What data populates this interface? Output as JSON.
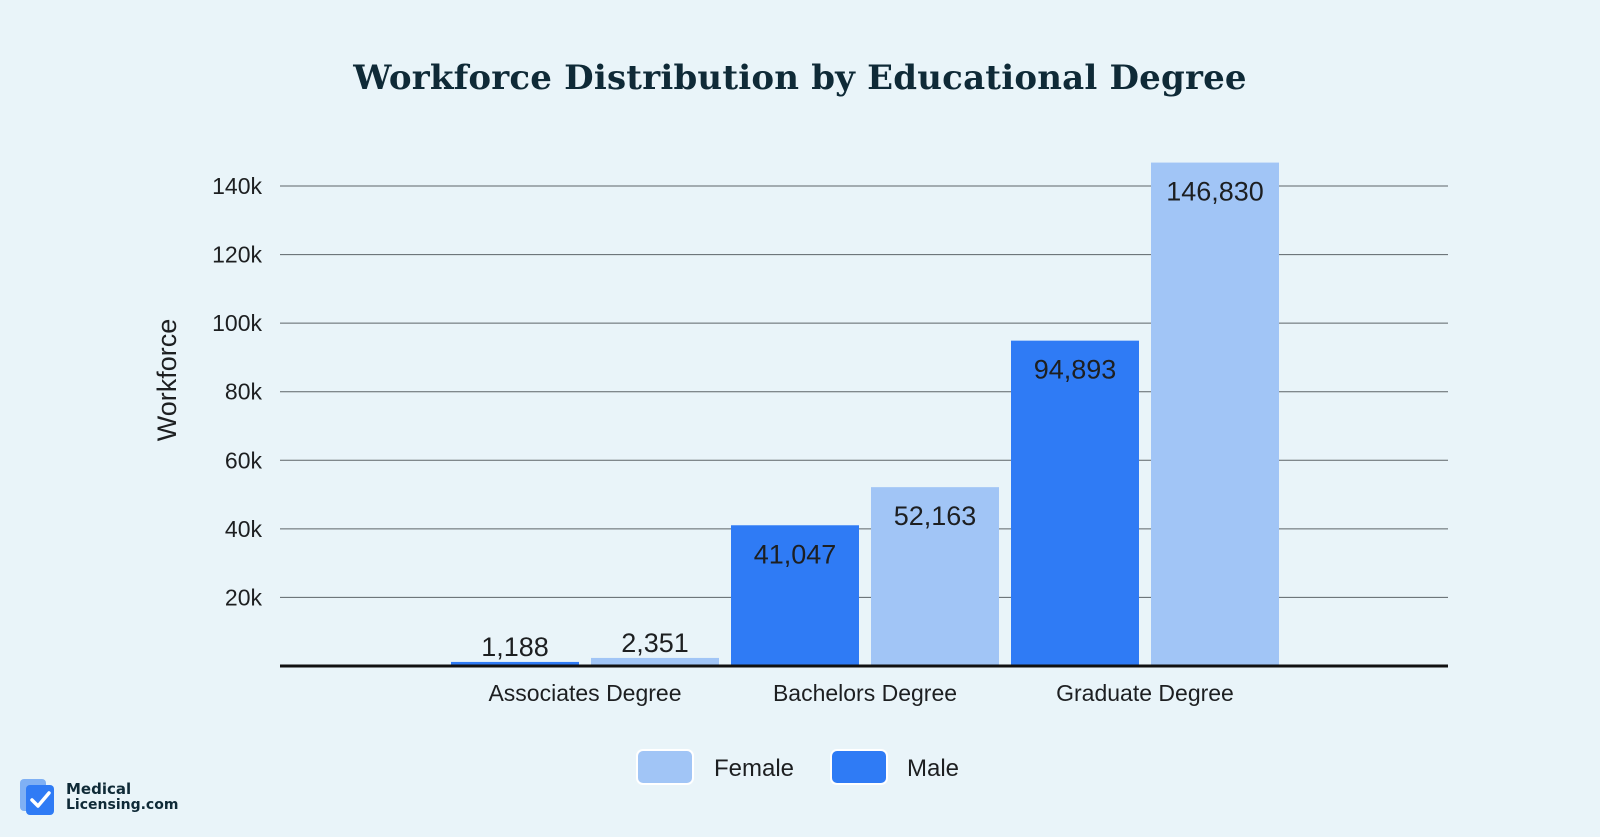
{
  "chart_data": {
    "type": "bar",
    "title": "Workforce Distribution by Educational Degree",
    "ylabel": "Workforce",
    "xlabel": "",
    "categories": [
      "Associates Degree",
      "Bachelors Degree",
      "Graduate Degree"
    ],
    "series": [
      {
        "name": "Male",
        "color": "#2f7bf5",
        "values": [
          1188,
          41047,
          94893
        ],
        "labels": [
          "1,188",
          "41,047",
          "94,893"
        ]
      },
      {
        "name": "Female",
        "color": "#a1c5f6",
        "values": [
          2351,
          52163,
          146830
        ],
        "labels": [
          "2,351",
          "52,163",
          "146,830"
        ]
      }
    ],
    "ylim": [
      0,
      145000
    ],
    "yticks": [
      20000,
      40000,
      60000,
      80000,
      100000,
      120000,
      140000
    ],
    "ytick_labels": [
      "20k",
      "40k",
      "60k",
      "80k",
      "100k",
      "120k",
      "140k"
    ],
    "grid": true,
    "legend": {
      "position": "bottom",
      "order": [
        "Female",
        "Male"
      ]
    }
  },
  "branding": {
    "logo_line1": "Medical",
    "logo_line2": "Licensing.com",
    "logo_color": "#2f7bf5"
  }
}
